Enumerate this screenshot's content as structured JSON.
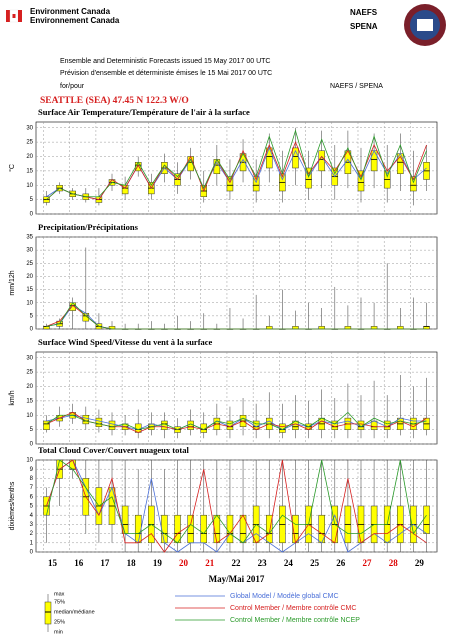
{
  "header": {
    "org_en": "Environment Canada",
    "org_fr": "Environnement Canada",
    "brand1": "NAEFS",
    "brand2": "SPENA",
    "line1": "Ensemble and Deterministic Forecasts issued 15 May 2017 00 UTC",
    "line2": "Prévision d'ensemble et déterministe émises le 15 Mai 2017 00 UTC",
    "line3": "for/pour",
    "line3_right": "NAEFS / SPENA",
    "station": "SEATTLE (SEA) 47.45 N  122.3 W/O"
  },
  "legend_box": [
    "max",
    "75%",
    "median/médiane",
    "25%",
    "min"
  ],
  "chart_data": [
    {
      "type": "box",
      "title": "Surface Air Temperature/Température de l'air à la surface",
      "ylabel": "°C",
      "ylim": [
        0,
        32
      ],
      "yticks": [
        0,
        5,
        10,
        15,
        20,
        25,
        30
      ],
      "xlim": [
        14.6,
        29.9
      ],
      "xticks": [
        15,
        16,
        17,
        18,
        19,
        20,
        21,
        22,
        23,
        24,
        25,
        26,
        27,
        28,
        29
      ],
      "grid": true,
      "x": [
        15,
        15.5,
        16,
        16.5,
        17,
        17.5,
        18,
        18.5,
        19,
        19.5,
        20,
        20.5,
        21,
        21.5,
        22,
        22.5,
        23,
        23.5,
        24,
        24.5,
        25,
        25.5,
        26,
        26.5,
        27,
        27.5,
        28,
        28.5,
        29,
        29.5
      ],
      "min": [
        3,
        7,
        5,
        4,
        3,
        8,
        5,
        13,
        5,
        11,
        7,
        12,
        4,
        10,
        5,
        11,
        4,
        11,
        4,
        10,
        5,
        9,
        5,
        9,
        4,
        9,
        4,
        8,
        3,
        8
      ],
      "q1": [
        4,
        8,
        6,
        5,
        4,
        10,
        7,
        15,
        7,
        14,
        10,
        15,
        6,
        14,
        8,
        15,
        8,
        16,
        8,
        16,
        9,
        15,
        10,
        14,
        8,
        15,
        9,
        14,
        8,
        12
      ],
      "median": [
        5,
        9,
        7,
        6,
        5,
        11,
        9,
        17,
        9,
        16,
        12,
        18,
        8,
        17,
        10,
        18,
        10,
        20,
        11,
        20,
        12,
        19,
        13,
        18,
        11,
        19,
        12,
        18,
        10,
        15
      ],
      "q3": [
        6,
        10,
        8,
        7,
        6,
        12,
        10,
        18,
        11,
        18,
        14,
        20,
        10,
        19,
        13,
        21,
        13,
        23,
        14,
        23,
        16,
        22,
        16,
        22,
        15,
        22,
        15,
        21,
        13,
        18
      ],
      "max": [
        8,
        11,
        9,
        9,
        9,
        14,
        13,
        20,
        14,
        21,
        18,
        23,
        15,
        24,
        19,
        26,
        19,
        28,
        22,
        30,
        22,
        29,
        24,
        29,
        23,
        28,
        24,
        28,
        22,
        24
      ],
      "series": [
        {
          "name": "Global Model / Modèle global CMC",
          "color": "#4a6fd8",
          "values": [
            6,
            9,
            7,
            6,
            5,
            12,
            9,
            17,
            9,
            16,
            12,
            19,
            9,
            18,
            11,
            19,
            11,
            23,
            12,
            22,
            13,
            20,
            13,
            19,
            12,
            22,
            14,
            21,
            12,
            16
          ]
        },
        {
          "name": "Control Member / Membre contrôle CMC",
          "color": "#d62020",
          "values": [
            5,
            9,
            7,
            6,
            5,
            12,
            9,
            17,
            9,
            17,
            12,
            20,
            8,
            19,
            11,
            22,
            12,
            24,
            13,
            25,
            14,
            20,
            15,
            22,
            13,
            24,
            15,
            20,
            12,
            24
          ]
        },
        {
          "name": "Control Member / Membre contrôle NCEP",
          "color": "#2a9a2a",
          "values": [
            5,
            9,
            7,
            6,
            6,
            11,
            10,
            18,
            10,
            17,
            13,
            19,
            9,
            19,
            12,
            21,
            13,
            27,
            14,
            29,
            13,
            26,
            14,
            23,
            12,
            27,
            13,
            24,
            11,
            22
          ]
        }
      ]
    },
    {
      "type": "box",
      "title": "Precipitation/Précipitations",
      "ylabel": "mm/12h",
      "ylim": [
        0,
        35
      ],
      "yticks": [
        0,
        5,
        10,
        15,
        20,
        25,
        30,
        35
      ],
      "xlim": [
        14.6,
        29.9
      ],
      "xticks": [
        15,
        16,
        17,
        18,
        19,
        20,
        21,
        22,
        23,
        24,
        25,
        26,
        27,
        28,
        29
      ],
      "grid": true,
      "x": [
        15,
        15.5,
        16,
        16.5,
        17,
        17.5,
        18,
        18.5,
        19,
        19.5,
        20,
        20.5,
        21,
        21.5,
        22,
        22.5,
        23,
        23.5,
        24,
        24.5,
        25,
        25.5,
        26,
        26.5,
        27,
        27.5,
        28,
        28.5,
        29,
        29.5
      ],
      "min": [
        0,
        0,
        0,
        0,
        0,
        0,
        0,
        0,
        0,
        0,
        0,
        0,
        0,
        0,
        0,
        0,
        0,
        0,
        0,
        0,
        0,
        0,
        0,
        0,
        0,
        0,
        0,
        0,
        0,
        0
      ],
      "q1": [
        0,
        1,
        7,
        3,
        0,
        0,
        0,
        0,
        0,
        0,
        0,
        0,
        0,
        0,
        0,
        0,
        0,
        0,
        0,
        0,
        0,
        0,
        0,
        0,
        0,
        0,
        0,
        0,
        0,
        0
      ],
      "median": [
        1,
        2,
        9,
        5,
        1,
        0,
        0,
        0,
        0,
        0,
        0,
        0,
        0,
        0,
        0,
        0,
        0,
        0,
        0,
        0,
        0,
        0,
        0,
        0,
        0,
        0,
        0,
        0,
        0,
        1
      ],
      "q3": [
        1,
        3,
        10,
        6,
        2,
        1,
        0,
        0,
        0,
        0,
        0,
        0,
        0,
        0,
        0,
        0,
        0,
        1,
        0,
        1,
        0,
        1,
        0,
        1,
        0,
        1,
        0,
        1,
        0,
        1
      ],
      "max": [
        2,
        4,
        12,
        31,
        6,
        3,
        2,
        2,
        3,
        2,
        5,
        3,
        6,
        2,
        8,
        4,
        13,
        5,
        15,
        7,
        10,
        8,
        16,
        9,
        12,
        10,
        25,
        8,
        12,
        10
      ],
      "series": [
        {
          "name": "Global Model / Modèle global CMC",
          "color": "#4a6fd8",
          "values": [
            1,
            2,
            9,
            6,
            1,
            0,
            0,
            0,
            0,
            0,
            0,
            0,
            0,
            0,
            0,
            0,
            0,
            0,
            0,
            0,
            0,
            0,
            0,
            0,
            0,
            0,
            0,
            0,
            0,
            0
          ]
        },
        {
          "name": "Control Member / Membre contrôle CMC",
          "color": "#d62020",
          "values": [
            1,
            3,
            9,
            5,
            1,
            0,
            0,
            0,
            0,
            0,
            0,
            0,
            0,
            0,
            0,
            0,
            0,
            0,
            0,
            0,
            0,
            0,
            0,
            0,
            0,
            0,
            0,
            0,
            0,
            0
          ]
        },
        {
          "name": "Control Member / Membre contrôle NCEP",
          "color": "#2a9a2a",
          "values": [
            1,
            2,
            10,
            5,
            1,
            0,
            0,
            0,
            0,
            0,
            0,
            0,
            0,
            0,
            0,
            0,
            0,
            0,
            0,
            0,
            0,
            0,
            0,
            0,
            0,
            0,
            0,
            0,
            0,
            0
          ]
        }
      ]
    },
    {
      "type": "box",
      "title": "Surface Wind Speed/Vitesse du vent à la surface",
      "ylabel": "km/h",
      "ylim": [
        0,
        32
      ],
      "yticks": [
        0,
        5,
        10,
        15,
        20,
        25,
        30
      ],
      "xlim": [
        14.6,
        29.9
      ],
      "xticks": [
        15,
        16,
        17,
        18,
        19,
        20,
        21,
        22,
        23,
        24,
        25,
        26,
        27,
        28,
        29
      ],
      "grid": true,
      "x": [
        15,
        15.5,
        16,
        16.5,
        17,
        17.5,
        18,
        18.5,
        19,
        19.5,
        20,
        20.5,
        21,
        21.5,
        22,
        22.5,
        23,
        23.5,
        24,
        24.5,
        25,
        25.5,
        26,
        26.5,
        27,
        27.5,
        28,
        28.5,
        29,
        29.5
      ],
      "min": [
        4,
        6,
        7,
        5,
        4,
        3,
        3,
        2,
        3,
        2,
        2,
        3,
        2,
        3,
        2,
        3,
        2,
        2,
        2,
        2,
        2,
        2,
        2,
        2,
        2,
        2,
        2,
        3,
        2,
        3
      ],
      "q1": [
        5,
        8,
        9,
        7,
        6,
        5,
        5,
        4,
        5,
        5,
        4,
        5,
        4,
        5,
        5,
        6,
        5,
        5,
        4,
        5,
        5,
        5,
        5,
        5,
        5,
        5,
        5,
        5,
        5,
        5
      ],
      "median": [
        7,
        9,
        10,
        8,
        7,
        6,
        6,
        5,
        6,
        7,
        5,
        6,
        5,
        7,
        6,
        8,
        6,
        7,
        5,
        6,
        6,
        7,
        6,
        7,
        6,
        6,
        6,
        7,
        7,
        7
      ],
      "q3": [
        8,
        10,
        11,
        10,
        9,
        8,
        7,
        7,
        7,
        8,
        6,
        8,
        7,
        9,
        8,
        10,
        8,
        9,
        7,
        8,
        7,
        9,
        8,
        9,
        8,
        8,
        8,
        9,
        9,
        9
      ],
      "max": [
        10,
        13,
        14,
        13,
        12,
        11,
        10,
        12,
        11,
        11,
        9,
        12,
        11,
        14,
        13,
        16,
        14,
        18,
        14,
        17,
        15,
        19,
        16,
        21,
        17,
        22,
        17,
        24,
        20,
        23
      ],
      "series": [
        {
          "name": "Global Model / Modèle global CMC",
          "color": "#4a6fd8",
          "values": [
            8,
            9,
            10,
            9,
            8,
            7,
            6,
            5,
            7,
            6,
            5,
            7,
            5,
            8,
            6,
            9,
            6,
            8,
            5,
            7,
            6,
            8,
            7,
            8,
            6,
            8,
            6,
            9,
            8,
            8
          ]
        },
        {
          "name": "Control Member / Membre contrôle CMC",
          "color": "#d62020",
          "values": [
            7,
            9,
            11,
            8,
            7,
            6,
            6,
            4,
            6,
            6,
            5,
            6,
            5,
            7,
            6,
            8,
            5,
            7,
            6,
            7,
            5,
            8,
            6,
            7,
            7,
            6,
            6,
            8,
            6,
            9
          ]
        },
        {
          "name": "Control Member / Membre contrôle NCEP",
          "color": "#2a9a2a",
          "values": [
            7,
            10,
            10,
            8,
            7,
            6,
            7,
            5,
            6,
            7,
            5,
            7,
            5,
            8,
            7,
            9,
            7,
            7,
            5,
            8,
            6,
            9,
            7,
            11,
            6,
            9,
            7,
            8,
            7,
            8
          ]
        }
      ]
    },
    {
      "type": "box",
      "title": "Total Cloud Cover/Couvert nuageux total",
      "ylabel": "dixièmes/tenths",
      "ylim": [
        0,
        10
      ],
      "yticks": [
        0,
        1,
        2,
        3,
        4,
        5,
        6,
        7,
        8,
        9,
        10
      ],
      "xlim": [
        14.6,
        29.9
      ],
      "xticks": [
        15,
        16,
        17,
        18,
        19,
        20,
        21,
        22,
        23,
        24,
        25,
        26,
        27,
        28,
        29
      ],
      "xtick_colors": [
        "#000",
        "#000",
        "#000",
        "#000",
        "#000",
        "#d00",
        "#d00",
        "#000",
        "#000",
        "#000",
        "#000",
        "#000",
        "#d00",
        "#d00",
        "#000"
      ],
      "xlabel": "May/Mai 2017",
      "grid": true,
      "x": [
        15,
        15.5,
        16,
        16.5,
        17,
        17.5,
        18,
        18.5,
        19,
        19.5,
        20,
        20.5,
        21,
        21.5,
        22,
        22.5,
        23,
        23.5,
        24,
        24.5,
        25,
        25.5,
        26,
        26.5,
        27,
        27.5,
        28,
        28.5,
        29,
        29.5
      ],
      "min": [
        1,
        5,
        8,
        2,
        1,
        1,
        0,
        0,
        0,
        0,
        0,
        0,
        0,
        0,
        0,
        0,
        0,
        0,
        0,
        0,
        0,
        0,
        0,
        0,
        0,
        0,
        0,
        0,
        0,
        0
      ],
      "q1": [
        4,
        8,
        9,
        4,
        3,
        3,
        2,
        1,
        1,
        1,
        1,
        1,
        1,
        1,
        1,
        1,
        1,
        1,
        1,
        1,
        1,
        1,
        1,
        1,
        1,
        1,
        1,
        1,
        1,
        2
      ],
      "median": [
        5,
        9,
        9,
        6,
        5,
        5,
        3,
        2,
        3,
        2,
        2,
        2,
        2,
        2,
        2,
        2,
        3,
        2,
        3,
        2,
        3,
        2,
        3,
        3,
        3,
        3,
        3,
        3,
        3,
        3
      ],
      "q3": [
        6,
        10,
        10,
        8,
        7,
        7,
        5,
        4,
        5,
        4,
        4,
        4,
        4,
        4,
        4,
        4,
        5,
        4,
        5,
        4,
        5,
        4,
        5,
        5,
        5,
        5,
        5,
        5,
        5,
        5
      ],
      "max": [
        7,
        10,
        10,
        10,
        10,
        10,
        10,
        9,
        10,
        9,
        10,
        10,
        10,
        10,
        10,
        10,
        10,
        10,
        10,
        10,
        10,
        10,
        10,
        10,
        10,
        10,
        10,
        10,
        10,
        10
      ],
      "series": [
        {
          "name": "Global Model / Modèle global CMC",
          "color": "#4a6fd8",
          "values": [
            5,
            9,
            10,
            7,
            4,
            7,
            2,
            1,
            8,
            1,
            0,
            1,
            1,
            0,
            2,
            1,
            2,
            1,
            0,
            1,
            2,
            1,
            4,
            0,
            1,
            2,
            1,
            2,
            3,
            2
          ]
        },
        {
          "name": "Control Member / Membre contrôle CMC",
          "color": "#d62020",
          "values": [
            5,
            9,
            10,
            6,
            4,
            8,
            1,
            1,
            2,
            0,
            2,
            3,
            9,
            1,
            2,
            4,
            1,
            2,
            10,
            1,
            3,
            2,
            1,
            8,
            1,
            2,
            2,
            3,
            2,
            1
          ]
        },
        {
          "name": "Control Member / Membre contrôle NCEP",
          "color": "#2a9a2a",
          "values": [
            4,
            10,
            9,
            7,
            5,
            6,
            2,
            2,
            3,
            2,
            1,
            3,
            2,
            4,
            2,
            1,
            3,
            2,
            4,
            3,
            3,
            10,
            3,
            2,
            2,
            3,
            3,
            10,
            2,
            4
          ]
        }
      ]
    }
  ]
}
